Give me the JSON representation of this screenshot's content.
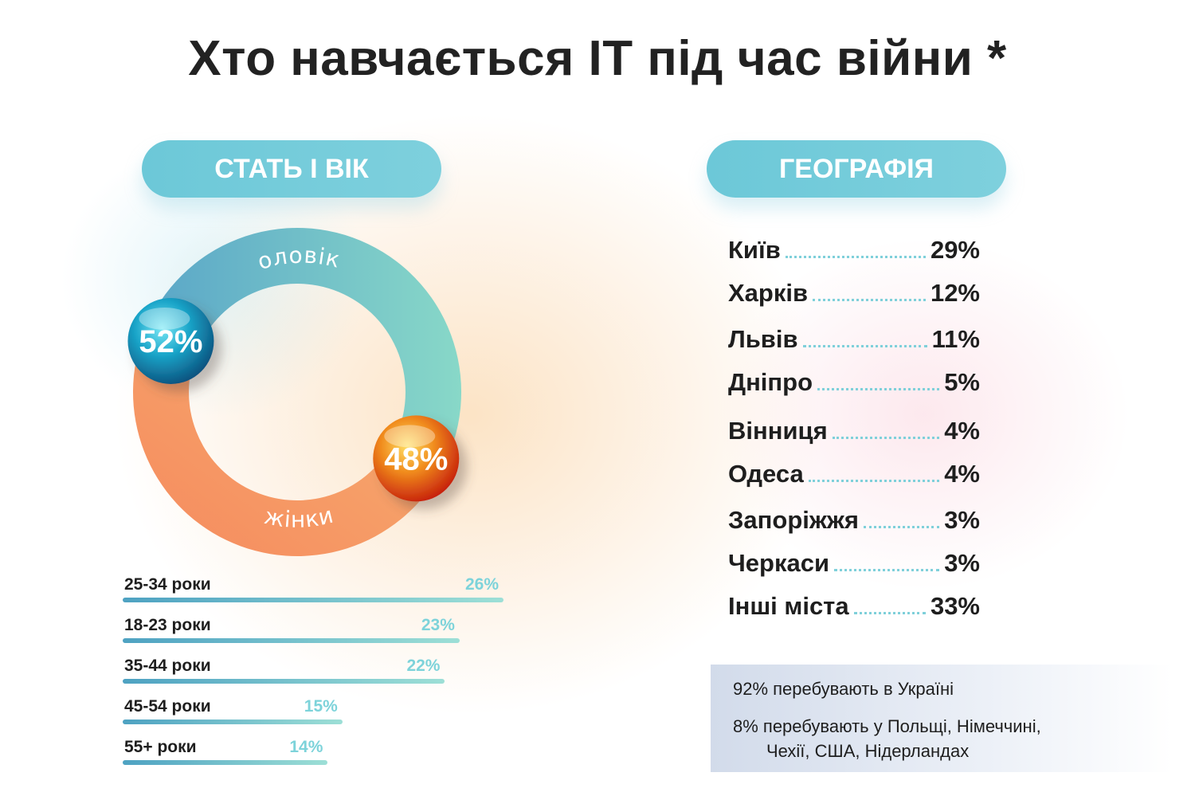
{
  "title": "Хто навчається IT під час війни *",
  "sections": {
    "gender_age": "СТАТЬ І ВІК",
    "geography": "ГЕОГРАФІЯ"
  },
  "colors": {
    "teal": "#6cc8d8",
    "men_ring_start": "#5aa6c8",
    "men_ring_end": "#88d8c8",
    "women_ring_start": "#f58a5e",
    "women_ring_end": "#f7b070",
    "men_ball": "#1aa5c9",
    "women_ball": "#e6441a",
    "age_value": "#7dd3da"
  },
  "chart_data": [
    {
      "type": "pie",
      "variant": "donut",
      "labels": [
        "чоловіки",
        "жінки"
      ],
      "values": [
        52,
        48
      ],
      "value_labels": [
        "52%",
        "48%"
      ]
    },
    {
      "type": "bar",
      "orientation": "horizontal",
      "categories": [
        "25-34 роки",
        "18-23 роки",
        "35-44 роки",
        "45-54 роки",
        "55+ роки"
      ],
      "values": [
        26,
        23,
        22,
        15,
        14
      ],
      "value_labels": [
        "26%",
        "23%",
        "22%",
        "15%",
        "14%"
      ]
    },
    {
      "type": "table",
      "rows": [
        {
          "city": "Київ",
          "value": "29%"
        },
        {
          "city": "Харків",
          "value": "12%"
        },
        {
          "city": "Львів",
          "value": "11%"
        },
        {
          "city": "Дніпро",
          "value": "5%"
        },
        {
          "city": "Вінниця",
          "value": "4%"
        },
        {
          "city": "Одеса",
          "value": "4%"
        },
        {
          "city": "Запоріжжя",
          "value": "3%"
        },
        {
          "city": "Черкаси",
          "value": "3%"
        },
        {
          "city": "Інші міста",
          "value": "33%"
        }
      ]
    }
  ],
  "notes": {
    "line1": "92% перебувають в Україні",
    "line2a": "8% перебувають у Польщі, Німеччині,",
    "line2b": "Чехії, США, Нідерландах"
  }
}
